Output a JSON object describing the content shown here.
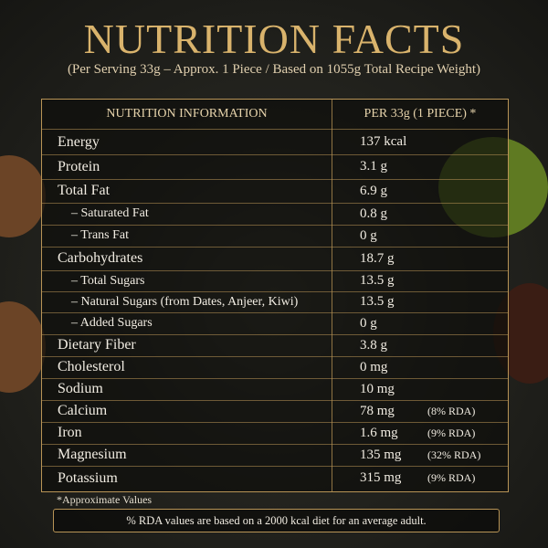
{
  "header": {
    "title": "NUTRITION FACTS",
    "subtitle": "(Per Serving 33g – Approx. 1 Piece / Based on 1055g Total Recipe Weight)"
  },
  "table": {
    "columns": [
      "NUTRITION INFORMATION",
      "PER 33g (1 PIECE) *"
    ],
    "rows": [
      {
        "label": "Energy",
        "value": "137 kcal"
      },
      {
        "label": "Protein",
        "value": "3.1 g"
      },
      {
        "label": "Total Fat",
        "value": "6.9 g"
      },
      {
        "label": "– Saturated Fat",
        "value": "0.8 g"
      },
      {
        "label": "– Trans Fat",
        "value": "0 g"
      },
      {
        "label": "Carbohydrates",
        "value": "18.7 g"
      },
      {
        "label": "– Total Sugars",
        "value": "13.5 g"
      },
      {
        "label": "– Natural Sugars (from Dates, Anjeer, Kiwi)",
        "value": "13.5 g"
      },
      {
        "label": "– Added Sugars",
        "value": "0 g"
      },
      {
        "label": "Dietary Fiber",
        "value": "3.8 g"
      },
      {
        "label": "Cholesterol",
        "value": "0 mg"
      },
      {
        "label": "Sodium",
        "value": "10 mg"
      },
      {
        "label": "Calcium",
        "value": "78 mg",
        "rda": "(8% RDA)"
      },
      {
        "label": "Iron",
        "value": "1.6 mg",
        "rda": "(9% RDA)"
      },
      {
        "label": "Magnesium",
        "value": "135 mg",
        "rda": "(32% RDA)"
      },
      {
        "label": "Potassium",
        "value": "315 mg",
        "rda": "(9% RDA)"
      }
    ]
  },
  "footnote": "*Approximate Values",
  "note": "% RDA values are based on a 2000 kcal diet for an average adult."
}
